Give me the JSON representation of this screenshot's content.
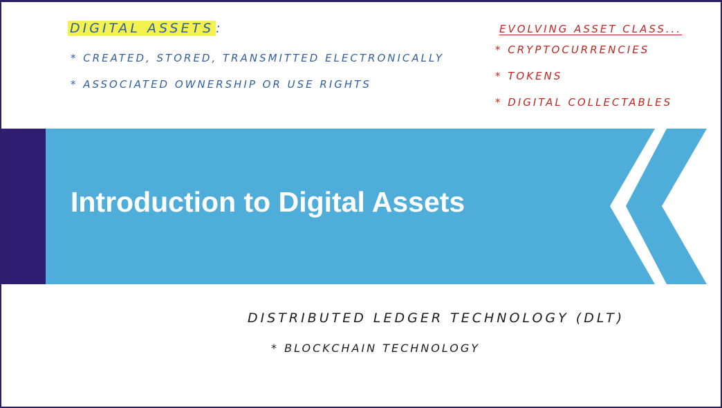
{
  "slide": {
    "title": "Introduction to Digital Assets",
    "colors": {
      "banner_blue": "#4fadd9",
      "accent_purple": "#2f1d72",
      "blue_ink": "#2f5fa0",
      "red_ink": "#c0251f",
      "highlight": "#f3f24e"
    }
  },
  "notes_left": {
    "heading": "Digital Assets",
    "heading_suffix": ":",
    "items": [
      "* Created, stored, transmitted electronically",
      "* Associated ownership or use rights"
    ]
  },
  "notes_right": {
    "heading": "Evolving asset class...",
    "items": [
      "* Cryptocurrencies",
      "* Tokens",
      "* Digital collectables"
    ]
  },
  "notes_bottom": {
    "line_1": "Distributed ledger technology (DLT)",
    "line_2": "* Blockchain technology"
  }
}
